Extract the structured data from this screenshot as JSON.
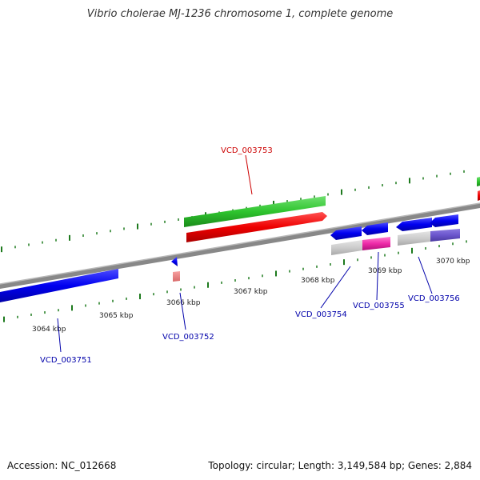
{
  "title": "Vibrio cholerae MJ-1236 chromosome 1, complete genome",
  "footer": {
    "accession": "Accession: NC_012668",
    "summary": "Topology: circular; Length: 3,149,584 bp; Genes: 2,884"
  },
  "colors": {
    "backbone": "#808080",
    "tick": "#1e7a1e",
    "label_blue": "#0000aa",
    "label_red": "#cc0000"
  },
  "ticks": [
    "3064 kbp",
    "3065 kbp",
    "3066 kbp",
    "3067 kbp",
    "3068 kbp",
    "3069 kbp",
    "3070 kbp"
  ],
  "gene_labels": [
    {
      "id": "VCD_003751",
      "color": "#0000aa"
    },
    {
      "id": "VCD_003752",
      "color": "#0000aa"
    },
    {
      "id": "VCD_003753",
      "color": "#cc0000"
    },
    {
      "id": "VCD_003754",
      "color": "#0000aa"
    },
    {
      "id": "VCD_003755",
      "color": "#0000aa"
    },
    {
      "id": "VCD_003756",
      "color": "#0000aa"
    }
  ]
}
